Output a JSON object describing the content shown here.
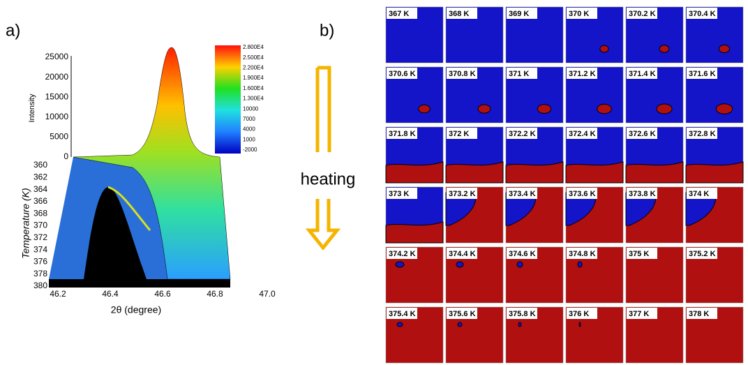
{
  "panel_a": {
    "label": "a)",
    "y_label": "Intensity",
    "y_ticks": [
      "0",
      "5000",
      "10000",
      "15000",
      "20000",
      "25000"
    ],
    "temperature_label": "Temperature (K)",
    "temperature_ticks": [
      "360",
      "362",
      "364",
      "366",
      "368",
      "370",
      "372",
      "374",
      "376",
      "378",
      "380"
    ],
    "x_label": "2θ (degree)",
    "x_ticks": [
      "46.2",
      "46.4",
      "46.6",
      "46.8",
      "47.0"
    ],
    "colorbar_labels": [
      "2.800E4",
      "2.500E4",
      "2.200E4",
      "1.900E4",
      "1.600E4",
      "1.300E4",
      "10000",
      "7000",
      "4000",
      "1000",
      "-2000"
    ]
  },
  "panel_b": {
    "label": "b)",
    "arrow_label": "heating",
    "tiles": [
      "367 K",
      "368 K",
      "369 K",
      "370 K",
      "370.2 K",
      "370.4 K",
      "370.6 K",
      "370.8 K",
      "371 K",
      "371.2 K",
      "371.4 K",
      "371.6 K",
      "371.8 K",
      "372 K",
      "372.2 K",
      "372.4 K",
      "372.6 K",
      "372.8 K",
      "373 K",
      "373.2 K",
      "373.4 K",
      "373.6 K",
      "373.8 K",
      "374 K",
      "374.2 K",
      "374.4 K",
      "374.6 K",
      "374.8 K",
      "375 K",
      "375.2 K",
      "375.4 K",
      "375.6 K",
      "375.8 K",
      "376 K",
      "377 K",
      "378 K"
    ]
  }
}
